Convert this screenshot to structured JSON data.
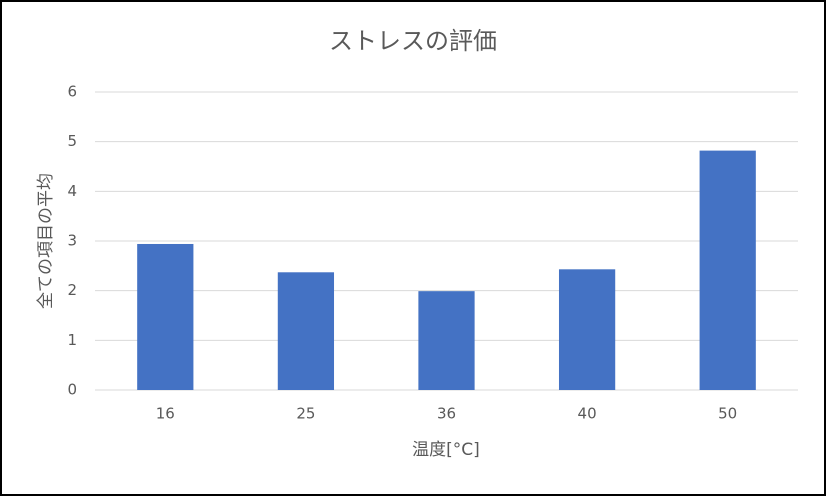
{
  "chart_data": {
    "type": "bar",
    "title": "ストレスの評価",
    "x_label": "温度[°C]",
    "y_label": "全ての項目の平均",
    "categories": [
      "16",
      "25",
      "36",
      "40",
      "50"
    ],
    "values": [
      2.94,
      2.37,
      1.99,
      2.43,
      4.82
    ],
    "color": "#4472c4",
    "ylim": [
      0,
      6
    ],
    "yticks": [
      0,
      1,
      2,
      3,
      4,
      5,
      6
    ],
    "grid": true
  }
}
